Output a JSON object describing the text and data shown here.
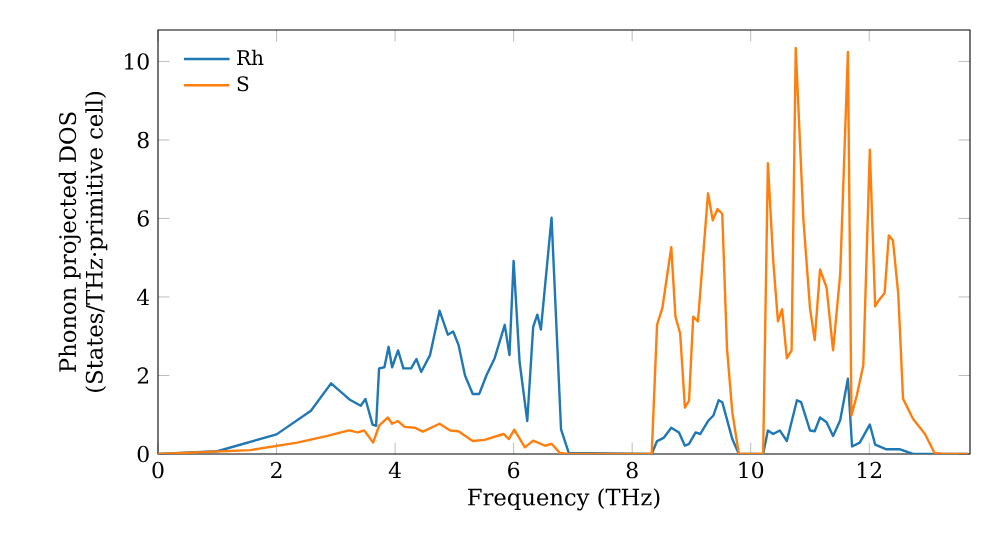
{
  "chart_data": {
    "type": "line",
    "xlabel": "Frequency (THz)",
    "ylabel": "Phonon projected DOS\n(States/THz·primitive cell)",
    "xlim": [
      0,
      13.7
    ],
    "ylim": [
      0,
      10.8
    ],
    "xticks": [
      0,
      2,
      4,
      6,
      8,
      10,
      12
    ],
    "yticks": [
      0,
      2,
      4,
      6,
      8,
      10
    ],
    "legend": "top left",
    "marker": "none",
    "line_style": "solid",
    "series": [
      {
        "name": "Rh",
        "color": "#1f77b4",
        "x": [
          0,
          1.0,
          2.0,
          2.58,
          2.92,
          3.23,
          3.42,
          3.5,
          3.62,
          3.68,
          3.73,
          3.82,
          3.89,
          3.95,
          4.05,
          4.14,
          4.27,
          4.36,
          4.44,
          4.59,
          4.75,
          4.89,
          4.98,
          5.07,
          5.18,
          5.31,
          5.42,
          5.54,
          5.68,
          5.85,
          5.93,
          6.0,
          6.1,
          6.23,
          6.33,
          6.4,
          6.46,
          6.64,
          6.8,
          6.93,
          8.33,
          8.42,
          8.53,
          8.66,
          8.79,
          8.89,
          8.96,
          9.07,
          9.15,
          9.28,
          9.37,
          9.46,
          9.52,
          9.69,
          9.8,
          10.21,
          10.29,
          10.38,
          10.49,
          10.61,
          10.78,
          10.85,
          11.0,
          11.08,
          11.17,
          11.28,
          11.39,
          11.51,
          11.64,
          11.71,
          11.84,
          12.01,
          12.1,
          12.29,
          12.52,
          12.74,
          13.66
        ],
        "values": [
          0,
          0.07,
          0.5,
          1.1,
          1.8,
          1.39,
          1.23,
          1.4,
          0.75,
          0.72,
          2.18,
          2.21,
          2.73,
          2.21,
          2.64,
          2.18,
          2.18,
          2.42,
          2.09,
          2.52,
          3.65,
          3.04,
          3.12,
          2.78,
          2.0,
          1.53,
          1.53,
          2.0,
          2.44,
          3.29,
          2.52,
          4.92,
          2.35,
          0.84,
          3.24,
          3.55,
          3.17,
          6.02,
          0.63,
          0.03,
          0,
          0.33,
          0.41,
          0.67,
          0.55,
          0.21,
          0.26,
          0.55,
          0.51,
          0.84,
          0.98,
          1.37,
          1.32,
          0.38,
          0,
          0,
          0.6,
          0.51,
          0.6,
          0.33,
          1.37,
          1.32,
          0.6,
          0.58,
          0.93,
          0.81,
          0.46,
          0.86,
          1.92,
          0.19,
          0.29,
          0.75,
          0.24,
          0.12,
          0.12,
          0,
          0
        ]
      },
      {
        "name": "S",
        "color": "#ff7f0e",
        "x": [
          0,
          1.56,
          2.35,
          2.86,
          3.22,
          3.37,
          3.48,
          3.63,
          3.73,
          3.88,
          3.95,
          4.05,
          4.16,
          4.33,
          4.47,
          4.75,
          4.93,
          5.07,
          5.31,
          5.51,
          5.83,
          5.92,
          6.01,
          6.19,
          6.33,
          6.53,
          6.64,
          6.78,
          6.93,
          8.33,
          8.42,
          8.51,
          8.66,
          8.73,
          8.81,
          8.89,
          8.96,
          9.03,
          9.11,
          9.28,
          9.36,
          9.44,
          9.52,
          9.6,
          9.69,
          9.8,
          10.21,
          10.29,
          10.38,
          10.46,
          10.53,
          10.61,
          10.69,
          10.76,
          10.89,
          11.0,
          11.08,
          11.17,
          11.28,
          11.39,
          11.51,
          11.64,
          11.7,
          11.79,
          11.9,
          12.01,
          12.1,
          12.15,
          12.26,
          12.33,
          12.4,
          12.49,
          12.57,
          12.74,
          12.94,
          13.1,
          13.25,
          13.66
        ],
        "values": [
          0,
          0.1,
          0.29,
          0.46,
          0.6,
          0.55,
          0.6,
          0.29,
          0.72,
          0.93,
          0.77,
          0.84,
          0.69,
          0.67,
          0.57,
          0.77,
          0.6,
          0.58,
          0.33,
          0.36,
          0.51,
          0.38,
          0.62,
          0.17,
          0.34,
          0.21,
          0.26,
          0.03,
          0,
          0,
          3.29,
          3.72,
          5.27,
          3.5,
          3.07,
          1.18,
          1.36,
          3.5,
          3.38,
          6.64,
          5.95,
          6.24,
          6.12,
          2.69,
          1.06,
          0,
          0,
          7.41,
          4.92,
          3.38,
          3.69,
          2.44,
          2.64,
          10.34,
          5.95,
          3.72,
          2.9,
          4.7,
          4.24,
          2.64,
          4.58,
          10.24,
          0.98,
          1.49,
          2.26,
          7.75,
          3.76,
          3.89,
          4.1,
          5.57,
          5.44,
          4.07,
          1.41,
          0.89,
          0.51,
          0.03,
          0,
          0
        ]
      }
    ]
  }
}
